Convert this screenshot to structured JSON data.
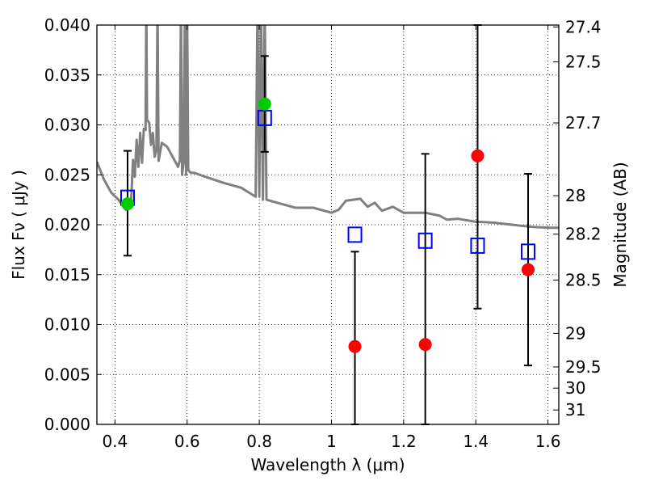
{
  "chart_data": {
    "type": "scatter",
    "x_axis": {
      "label": "Wavelength  λ (μm)",
      "range": [
        0.35,
        1.63
      ],
      "ticks": [
        0.4,
        0.6,
        0.8,
        1.0,
        1.2,
        1.4,
        1.6
      ],
      "tick_labels": [
        "0.4",
        "0.6",
        "0.8",
        "1",
        "1.2",
        "1.4",
        "1.6"
      ]
    },
    "y_axis_left": {
      "label": "Flux  Fν  ( μJy )",
      "range": [
        0.0,
        0.04
      ],
      "ticks": [
        0.0,
        0.005,
        0.01,
        0.015,
        0.02,
        0.025,
        0.03,
        0.035,
        0.04
      ],
      "tick_labels": [
        "0.000",
        "0.005",
        "0.010",
        "0.015",
        "0.020",
        "0.025",
        "0.030",
        "0.035",
        "0.040"
      ]
    },
    "y_axis_right": {
      "label": "Magnitude (AB)",
      "ticks": [
        27.4,
        27.5,
        27.7,
        28,
        28.2,
        28.5,
        29,
        29.5,
        30,
        31
      ],
      "tick_labels": [
        "27.4",
        "27.5",
        "27.7",
        "28",
        "28.2",
        "28.5",
        "29",
        "29.5",
        "30",
        "31"
      ]
    },
    "grid": true,
    "series": [
      {
        "kind": "sed_model_curve",
        "color": "#808080",
        "points": [
          [
            0.35,
            0.0263
          ],
          [
            0.37,
            0.0245
          ],
          [
            0.39,
            0.0232
          ],
          [
            0.41,
            0.0225
          ],
          [
            0.43,
            0.0215
          ],
          [
            0.445,
            0.0225
          ],
          [
            0.45,
            0.0265
          ],
          [
            0.455,
            0.0248
          ],
          [
            0.46,
            0.0285
          ],
          [
            0.465,
            0.0258
          ],
          [
            0.47,
            0.0292
          ],
          [
            0.475,
            0.0262
          ],
          [
            0.48,
            0.0296
          ],
          [
            0.485,
            0.0295
          ],
          [
            0.487,
            0.042
          ],
          [
            0.489,
            0.0305
          ],
          [
            0.495,
            0.0302
          ],
          [
            0.5,
            0.028
          ],
          [
            0.505,
            0.0292
          ],
          [
            0.51,
            0.0268
          ],
          [
            0.515,
            0.0275
          ],
          [
            0.518,
            0.042
          ],
          [
            0.521,
            0.0264
          ],
          [
            0.53,
            0.0282
          ],
          [
            0.545,
            0.0278
          ],
          [
            0.56,
            0.0268
          ],
          [
            0.575,
            0.0258
          ],
          [
            0.58,
            0.0265
          ],
          [
            0.583,
            0.042
          ],
          [
            0.586,
            0.025
          ],
          [
            0.59,
            0.0262
          ],
          [
            0.594,
            0.042
          ],
          [
            0.597,
            0.025
          ],
          [
            0.6,
            0.042
          ],
          [
            0.603,
            0.0255
          ],
          [
            0.61,
            0.0252
          ],
          [
            0.62,
            0.0252
          ],
          [
            0.65,
            0.0248
          ],
          [
            0.7,
            0.0242
          ],
          [
            0.75,
            0.0237
          ],
          [
            0.79,
            0.0228
          ],
          [
            0.795,
            0.042
          ],
          [
            0.8,
            0.0228
          ],
          [
            0.805,
            0.042
          ],
          [
            0.81,
            0.0225
          ],
          [
            0.815,
            0.042
          ],
          [
            0.82,
            0.0225
          ],
          [
            0.85,
            0.0222
          ],
          [
            0.9,
            0.0217
          ],
          [
            0.95,
            0.0217
          ],
          [
            1.0,
            0.0212
          ],
          [
            1.02,
            0.0215
          ],
          [
            1.04,
            0.0224
          ],
          [
            1.08,
            0.0226
          ],
          [
            1.1,
            0.0218
          ],
          [
            1.12,
            0.0222
          ],
          [
            1.14,
            0.0214
          ],
          [
            1.17,
            0.0218
          ],
          [
            1.2,
            0.0212
          ],
          [
            1.26,
            0.0212
          ],
          [
            1.3,
            0.0209
          ],
          [
            1.32,
            0.0205
          ],
          [
            1.35,
            0.0206
          ],
          [
            1.4,
            0.0203
          ],
          [
            1.45,
            0.0202
          ],
          [
            1.5,
            0.02
          ],
          [
            1.55,
            0.0198
          ],
          [
            1.6,
            0.0197
          ],
          [
            1.63,
            0.0197
          ]
        ]
      },
      {
        "kind": "model_photometry",
        "marker": "open-square",
        "color": "#0000ff",
        "points": [
          [
            0.435,
            0.0227
          ],
          [
            0.815,
            0.0307
          ],
          [
            1.065,
            0.019
          ],
          [
            1.26,
            0.0184
          ],
          [
            1.405,
            0.0179
          ],
          [
            1.545,
            0.0173
          ]
        ]
      },
      {
        "kind": "detections",
        "marker": "filled-circle",
        "color": "#00cc00",
        "points": [
          {
            "x": 0.435,
            "y": 0.0221,
            "err_low": 0.0169,
            "err_high": 0.0274
          },
          {
            "x": 0.815,
            "y": 0.0321,
            "err_low": 0.0273,
            "err_high": 0.0369
          }
        ]
      },
      {
        "kind": "non_detections",
        "marker": "filled-circle",
        "color": "#ff0000",
        "points": [
          {
            "x": 1.065,
            "y": 0.0078,
            "err_low": 0.0,
            "err_high": 0.0173
          },
          {
            "x": 1.26,
            "y": 0.008,
            "err_low": 0.0,
            "err_high": 0.0271
          },
          {
            "x": 1.405,
            "y": 0.0269,
            "err_low": 0.0116,
            "err_high": 0.04
          },
          {
            "x": 1.545,
            "y": 0.0155,
            "err_low": 0.0059,
            "err_high": 0.0251
          }
        ]
      }
    ],
    "errorbar_color": "#000000"
  }
}
